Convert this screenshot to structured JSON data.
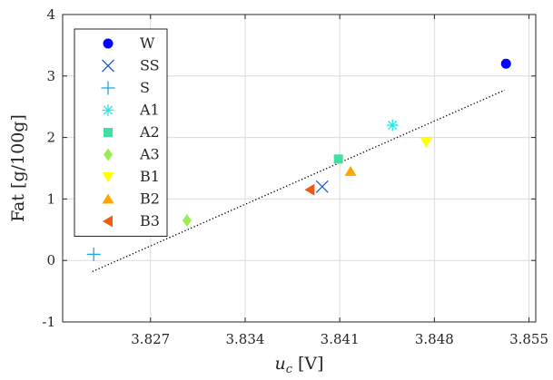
{
  "chart_data": {
    "type": "scatter",
    "xlabel": "u_c [V]",
    "ylabel": "Fat [g/100g]",
    "xlim": [
      3.8205,
      3.8555
    ],
    "ylim": [
      -1,
      4
    ],
    "xticks": [
      3.827,
      3.834,
      3.841,
      3.848,
      3.855
    ],
    "xtick_labels": [
      "3.827",
      "3.834",
      "3.841",
      "3.848",
      "3.855"
    ],
    "yticks": [
      -1,
      0,
      1,
      2,
      3,
      4
    ],
    "ytick_labels": [
      "-1",
      "0",
      "1",
      "2",
      "3",
      "4"
    ],
    "grid": true,
    "legend_position": "top-left",
    "series": [
      {
        "name": "W",
        "marker": "circle",
        "color": "#0000ff",
        "x": 3.8533,
        "y": 3.2
      },
      {
        "name": "SS",
        "marker": "x",
        "color": "#1f5fd6",
        "x": 3.8397,
        "y": 1.2
      },
      {
        "name": "S",
        "marker": "plus",
        "color": "#1aa7e8",
        "x": 3.8228,
        "y": 0.1
      },
      {
        "name": "A1",
        "marker": "asterisk",
        "color": "#26e6e6",
        "x": 3.8449,
        "y": 2.2
      },
      {
        "name": "A2",
        "marker": "square",
        "color": "#40e0a0",
        "x": 3.8409,
        "y": 1.65
      },
      {
        "name": "A3",
        "marker": "diamond",
        "color": "#9aee55",
        "x": 3.8297,
        "y": 0.65
      },
      {
        "name": "B1",
        "marker": "triangle-down",
        "color": "#ffff00",
        "x": 3.8474,
        "y": 1.92
      },
      {
        "name": "B2",
        "marker": "triangle-up",
        "color": "#ffa500",
        "x": 3.8418,
        "y": 1.45
      },
      {
        "name": "B3",
        "marker": "triangle-left",
        "color": "#f25a14",
        "x": 3.8388,
        "y": 1.15
      }
    ],
    "fit_line": {
      "style": "dotted",
      "color": "#000000",
      "x": [
        3.8227,
        3.8532
      ],
      "y": [
        -0.18,
        2.77
      ]
    }
  }
}
